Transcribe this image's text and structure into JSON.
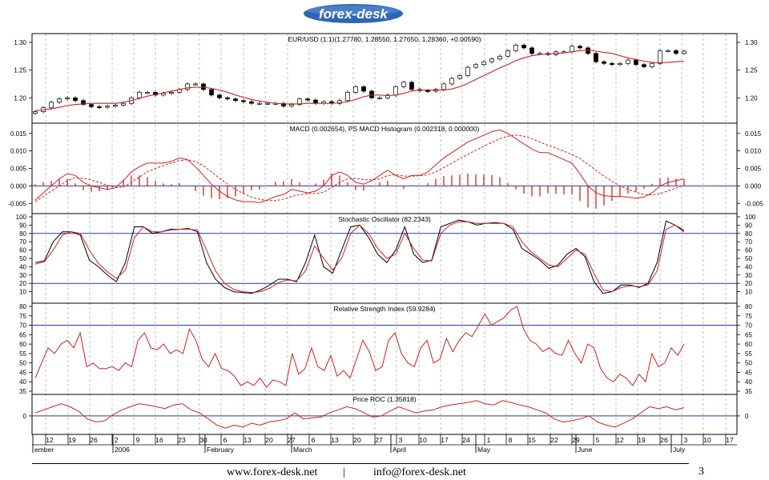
{
  "header": {
    "logo_text": "forex-desk"
  },
  "footer": {
    "website": "www.forex-desk.net",
    "separator": "|",
    "email": "info@forex-desk.net",
    "page_number": "3"
  },
  "colors": {
    "candle_up": "#ffffff",
    "candle_down": "#000000",
    "series": "#d42020",
    "reference": "#2a3aa0",
    "grid": "#9a9a9a"
  },
  "chart_data": [
    {
      "type": "candlestick",
      "title": "EUR/USD (1:1)(1.27780, 1.28550, 1.27650, 1.28360, +0.00590)",
      "ylim": [
        1.16,
        1.31
      ],
      "yticks": [
        "1.30",
        "1.25",
        "1.20"
      ],
      "ytick_values": [
        1.3,
        1.25,
        1.2
      ],
      "close_points": [
        1.175,
        1.182,
        1.192,
        1.198,
        1.2,
        1.195,
        1.188,
        1.184,
        1.183,
        1.185,
        1.187,
        1.19,
        1.2,
        1.21,
        1.21,
        1.205,
        1.208,
        1.21,
        1.215,
        1.225,
        1.225,
        1.215,
        1.205,
        1.2,
        1.198,
        1.195,
        1.193,
        1.19,
        1.19,
        1.19,
        1.19,
        1.185,
        1.188,
        1.198,
        1.196,
        1.19,
        1.193,
        1.19,
        1.195,
        1.21,
        1.22,
        1.212,
        1.2,
        1.2,
        1.205,
        1.22,
        1.228,
        1.215,
        1.213,
        1.212,
        1.215,
        1.225,
        1.235,
        1.24,
        1.255,
        1.26,
        1.265,
        1.27,
        1.275,
        1.285,
        1.295,
        1.29,
        1.28,
        1.28,
        1.278,
        1.283,
        1.283,
        1.293,
        1.29,
        1.28,
        1.265,
        1.262,
        1.26,
        1.262,
        1.268,
        1.26,
        1.256,
        1.262,
        1.285,
        1.285,
        1.28,
        1.284
      ],
      "ma_points": [
        1.177,
        1.178,
        1.18,
        1.183,
        1.186,
        1.188,
        1.189,
        1.19,
        1.19,
        1.19,
        1.19,
        1.192,
        1.195,
        1.199,
        1.203,
        1.206,
        1.209,
        1.212,
        1.215,
        1.218,
        1.219,
        1.219,
        1.217,
        1.214,
        1.21,
        1.205,
        1.201,
        1.197,
        1.194,
        1.192,
        1.19,
        1.189,
        1.189,
        1.189,
        1.19,
        1.19,
        1.19,
        1.19,
        1.191,
        1.193,
        1.197,
        1.202,
        1.205,
        1.205,
        1.204,
        1.205,
        1.208,
        1.212,
        1.214,
        1.214,
        1.214,
        1.214,
        1.216,
        1.22,
        1.226,
        1.233,
        1.24,
        1.247,
        1.254,
        1.26,
        1.267,
        1.272,
        1.276,
        1.278,
        1.279,
        1.28,
        1.281,
        1.283,
        1.285,
        1.286,
        1.284,
        1.282,
        1.28,
        1.276,
        1.272,
        1.269,
        1.266,
        1.264,
        1.263,
        1.264,
        1.265,
        1.266
      ]
    },
    {
      "type": "line",
      "title": "MACD (0.002654), PS MACD Histogram (0.002318, 0.000000)",
      "ylim": [
        -0.007,
        0.017
      ],
      "yticks_left": [
        "0.015",
        "0.010",
        "0.005",
        "0.000",
        "-0.005"
      ],
      "yticks_right": [
        "0.015",
        "0.010",
        "0.005",
        "0.000",
        "-0.005"
      ],
      "ytick_values": [
        0.015,
        0.01,
        0.005,
        0.0,
        -0.005
      ],
      "reference_line": 0.0,
      "macd": [
        -0.004,
        -0.002,
        0.0,
        0.002,
        0.0035,
        0.003,
        0.001,
        0.0,
        -0.0005,
        -0.001,
        -0.0005,
        0.0015,
        0.004,
        0.0055,
        0.0065,
        0.0065,
        0.0065,
        0.007,
        0.008,
        0.0075,
        0.0055,
        0.003,
        0.0005,
        -0.0015,
        -0.003,
        -0.004,
        -0.0045,
        -0.0045,
        -0.0048,
        -0.004,
        -0.003,
        -0.0025,
        -0.001,
        -0.0015,
        -0.002,
        -0.0015,
        0.0,
        0.003,
        0.004,
        0.003,
        0.001,
        0.0005,
        0.0015,
        0.003,
        0.0045,
        0.003,
        0.002,
        0.003,
        0.003,
        0.004,
        0.006,
        0.008,
        0.0095,
        0.011,
        0.0125,
        0.0135,
        0.0145,
        0.0155,
        0.016,
        0.015,
        0.0135,
        0.012,
        0.0105,
        0.0095,
        0.0095,
        0.0085,
        0.0075,
        0.0065,
        0.0035,
        0.0,
        -0.002,
        -0.0028,
        -0.003,
        -0.003,
        -0.0032,
        -0.0035,
        -0.0032,
        -0.002,
        0.0,
        0.001,
        0.0015,
        0.002
      ],
      "signal": [
        -0.0045,
        -0.003,
        -0.0015,
        0.0,
        0.0015,
        0.0023,
        0.0022,
        0.0017,
        0.001,
        0.0002,
        -0.0005,
        -0.0003,
        0.001,
        0.0025,
        0.004,
        0.005,
        0.0058,
        0.0065,
        0.0072,
        0.0075,
        0.007,
        0.0058,
        0.004,
        0.0022,
        0.0005,
        -0.001,
        -0.0022,
        -0.0032,
        -0.0038,
        -0.0042,
        -0.0042,
        -0.0038,
        -0.003,
        -0.0025,
        -0.0022,
        -0.0022,
        -0.0018,
        -0.0005,
        0.001,
        0.002,
        0.0022,
        0.0018,
        0.0017,
        0.002,
        0.003,
        0.0032,
        0.0028,
        0.0028,
        0.0029,
        0.0032,
        0.004,
        0.0052,
        0.0065,
        0.0078,
        0.009,
        0.0102,
        0.0113,
        0.0124,
        0.0135,
        0.0142,
        0.0145,
        0.0142,
        0.0135,
        0.0125,
        0.0116,
        0.0108,
        0.0099,
        0.009,
        0.0078,
        0.0062,
        0.0045,
        0.0028,
        0.0013,
        0.0,
        -0.001,
        -0.0018,
        -0.0024,
        -0.0026,
        -0.0022,
        -0.0014,
        -0.0006,
        0.0002
      ],
      "histogram": [
        0.0005,
        0.001,
        0.0015,
        0.002,
        0.002,
        0.0007,
        -0.0012,
        -0.0017,
        -0.0015,
        -0.0012,
        0.0,
        0.0018,
        0.003,
        0.003,
        0.0025,
        0.0015,
        0.0007,
        0.0005,
        0.0008,
        0.0,
        -0.0015,
        -0.0028,
        -0.0035,
        -0.0037,
        -0.0035,
        -0.003,
        -0.0023,
        -0.0013,
        -0.001,
        0.0002,
        0.0012,
        0.0013,
        0.002,
        0.001,
        0.0002,
        0.0007,
        0.0018,
        0.0035,
        0.003,
        0.001,
        -0.0012,
        -0.0013,
        -0.0002,
        0.001,
        0.0015,
        -0.0002,
        -0.0008,
        0.0002,
        0.0001,
        0.0008,
        0.002,
        0.0028,
        0.003,
        0.0032,
        0.0035,
        0.0033,
        0.0032,
        0.0031,
        0.0025,
        0.0008,
        -0.001,
        -0.0022,
        -0.003,
        -0.003,
        -0.0021,
        -0.0023,
        -0.0024,
        -0.0025,
        -0.0043,
        -0.0062,
        -0.0065,
        -0.0056,
        -0.0043,
        -0.003,
        -0.0022,
        -0.0017,
        -0.0008,
        0.0006,
        0.0022,
        0.0024,
        0.0021,
        0.0018
      ]
    },
    {
      "type": "line",
      "title": "Stochastic Oscillator (82.2343)",
      "ylim": [
        0,
        100
      ],
      "yticks": [
        "100",
        "90",
        "80",
        "70",
        "60",
        "50",
        "40",
        "30",
        "20",
        "10"
      ],
      "ytick_values": [
        100,
        90,
        80,
        70,
        60,
        50,
        40,
        30,
        20,
        10
      ],
      "reference_lines": [
        80,
        20
      ],
      "k": [
        45,
        47,
        70,
        82,
        82,
        78,
        48,
        40,
        30,
        22,
        45,
        88,
        88,
        80,
        82,
        85,
        85,
        86,
        82,
        45,
        25,
        15,
        10,
        9,
        8,
        12,
        18,
        25,
        25,
        22,
        45,
        78,
        40,
        32,
        60,
        88,
        90,
        75,
        55,
        45,
        60,
        88,
        55,
        45,
        48,
        88,
        92,
        96,
        94,
        90,
        92,
        93,
        92,
        85,
        62,
        55,
        48,
        38,
        42,
        55,
        62,
        52,
        22,
        8,
        10,
        18,
        18,
        15,
        20,
        45,
        95,
        90,
        82
      ],
      "d": [
        43,
        46,
        60,
        78,
        82,
        80,
        60,
        44,
        34,
        26,
        36,
        75,
        88,
        82,
        82,
        84,
        85,
        85,
        84,
        60,
        35,
        20,
        13,
        10,
        9,
        10,
        14,
        21,
        24,
        23,
        35,
        65,
        50,
        36,
        50,
        80,
        90,
        80,
        62,
        50,
        55,
        80,
        62,
        48,
        47,
        80,
        90,
        94,
        94,
        92,
        92,
        92,
        92,
        88,
        70,
        58,
        50,
        42,
        40,
        50,
        60,
        55,
        32,
        12,
        10,
        15,
        17,
        16,
        18,
        35,
        85,
        90,
        84
      ]
    },
    {
      "type": "line",
      "title": "Relative Strength Index (59.9284)",
      "ylim": [
        35,
        80
      ],
      "yticks": [
        "80",
        "75",
        "70",
        "65",
        "60",
        "55",
        "50",
        "45",
        "40",
        "35"
      ],
      "ytick_values": [
        80,
        75,
        70,
        65,
        60,
        55,
        50,
        45,
        40,
        35
      ],
      "reference_line": 70,
      "values": [
        42,
        50,
        58,
        55,
        60,
        62,
        58,
        66,
        48,
        50,
        47,
        47,
        48,
        46,
        50,
        48,
        62,
        66,
        58,
        57,
        60,
        55,
        57,
        55,
        68,
        62,
        52,
        48,
        55,
        47,
        46,
        43,
        38,
        40,
        38,
        42,
        37,
        41,
        40,
        38,
        55,
        44,
        47,
        58,
        48,
        46,
        54,
        43,
        46,
        42,
        52,
        62,
        56,
        46,
        48,
        62,
        66,
        55,
        50,
        48,
        58,
        62,
        50,
        52,
        63,
        56,
        62,
        66,
        64,
        70,
        76,
        70,
        72,
        74,
        78,
        80,
        68,
        62,
        60,
        56,
        58,
        55,
        54,
        62,
        55,
        50,
        60,
        58,
        47,
        42,
        40,
        44,
        42,
        38,
        44,
        40,
        55,
        48,
        50,
        58,
        54,
        60
      ]
    },
    {
      "type": "line",
      "title": "Price ROC (1.35818)",
      "ylim": [
        -2.5,
        3.0
      ],
      "yticks": [
        "0"
      ],
      "ytick_values": [
        0
      ],
      "reference_line": 0,
      "values": [
        0.5,
        1.0,
        1.5,
        2.0,
        1.5,
        0.8,
        -0.5,
        -1.0,
        -0.8,
        0.2,
        1.0,
        1.5,
        2.0,
        1.8,
        1.5,
        1.2,
        1.8,
        2.0,
        1.0,
        0.5,
        -0.5,
        -1.5,
        -2.0,
        -1.5,
        -1.8,
        -1.2,
        -1.5,
        -1.0,
        -0.8,
        -0.5,
        0.5,
        -0.5,
        -0.3,
        -0.2,
        0.5,
        1.0,
        1.5,
        1.2,
        0.5,
        -0.2,
        0.0,
        0.8,
        1.5,
        1.0,
        0.5,
        0.8,
        1.0,
        1.5,
        1.8,
        2.0,
        2.2,
        2.5,
        2.0,
        1.8,
        2.5,
        2.2,
        1.8,
        1.5,
        1.0,
        0.5,
        -0.5,
        -1.0,
        -0.8,
        -0.5,
        0.0,
        -1.0,
        -1.5,
        -1.8,
        -1.2,
        -0.5,
        0.5,
        1.5,
        1.2,
        1.5,
        1.0,
        1.36
      ]
    }
  ],
  "x_axis": {
    "day_labels": [
      "12",
      "19",
      "26",
      "2",
      "9",
      "16",
      "23",
      "30",
      "6",
      "13",
      "20",
      "27",
      "6",
      "13",
      "20",
      "27",
      "3",
      "10",
      "17",
      "24",
      "1",
      "8",
      "15",
      "22",
      "29",
      "5",
      "12",
      "19",
      "26",
      "3",
      "10",
      "17"
    ],
    "month_labels": [
      "ember",
      "2006",
      "February",
      "March",
      "April",
      "May",
      "June",
      "July"
    ]
  }
}
